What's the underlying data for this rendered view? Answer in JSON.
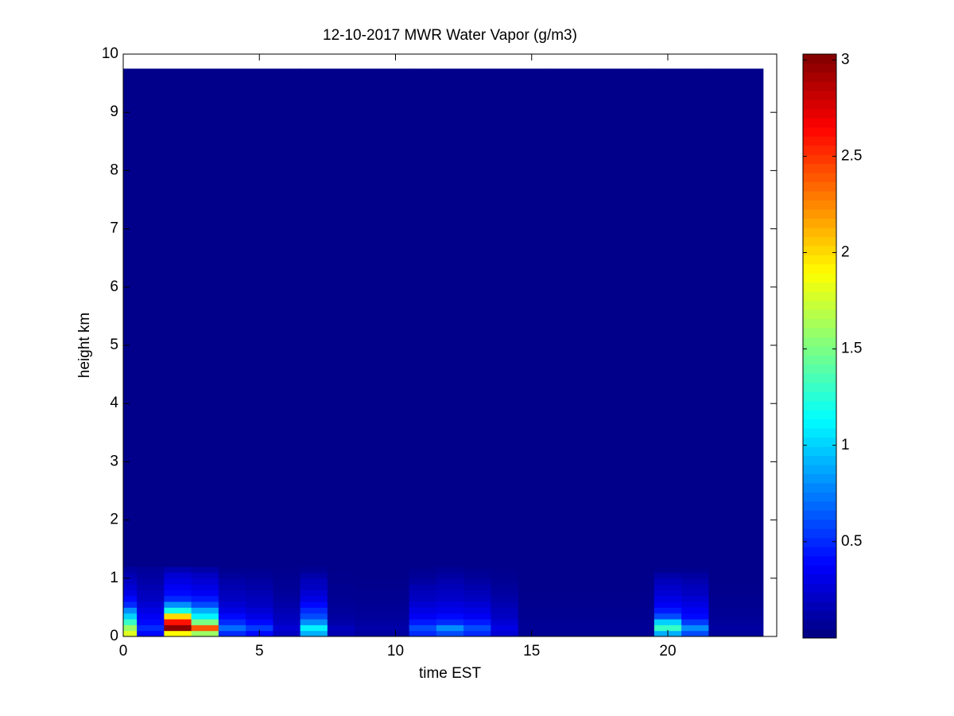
{
  "chart_data": {
    "type": "heatmap",
    "title": "12-10-2017 MWR Water Vapor (g/m3)",
    "x_label": "time EST",
    "y_label": "height km",
    "x_edges": [
      0,
      0.5,
      1.5,
      2.5,
      3.5,
      4.5,
      5.5,
      6.5,
      7.5,
      8.5,
      9.5,
      10.5,
      11.5,
      12.5,
      13.5,
      14.5,
      15.5,
      16.5,
      17.5,
      18.5,
      19.5,
      20.5,
      21.5,
      22.5,
      23.5
    ],
    "y_edges": [
      0,
      0.1,
      0.2,
      0.3,
      0.4,
      0.5,
      0.6,
      0.7,
      0.8,
      0.9,
      1.0,
      1.1,
      1.2,
      9.75
    ],
    "z": [
      [
        1.8,
        1.6,
        1.3,
        1.0,
        0.8,
        0.5,
        0.4,
        0.3,
        0.25,
        0.2,
        0.15,
        0.1,
        0.03
      ],
      [
        0.4,
        0.5,
        0.4,
        0.35,
        0.3,
        0.25,
        0.2,
        0.18,
        0.15,
        0.12,
        0.1,
        0.08,
        0.03
      ],
      [
        1.9,
        3.0,
        2.6,
        2.0,
        1.2,
        0.8,
        0.5,
        0.4,
        0.35,
        0.3,
        0.25,
        0.15,
        0.03
      ],
      [
        1.6,
        2.4,
        1.5,
        1.1,
        0.9,
        0.6,
        0.45,
        0.35,
        0.3,
        0.25,
        0.2,
        0.12,
        0.03
      ],
      [
        0.5,
        0.7,
        0.5,
        0.4,
        0.3,
        0.25,
        0.2,
        0.18,
        0.15,
        0.12,
        0.08,
        0.05,
        0.03
      ],
      [
        0.4,
        0.55,
        0.4,
        0.3,
        0.25,
        0.2,
        0.18,
        0.15,
        0.12,
        0.1,
        0.07,
        0.05,
        0.03
      ],
      [
        0.2,
        0.25,
        0.2,
        0.18,
        0.15,
        0.12,
        0.1,
        0.08,
        0.07,
        0.06,
        0.05,
        0.04,
        0.03
      ],
      [
        0.9,
        1.1,
        0.8,
        0.6,
        0.5,
        0.4,
        0.3,
        0.25,
        0.2,
        0.18,
        0.12,
        0.06,
        0.03
      ],
      [
        0.15,
        0.18,
        0.12,
        0.1,
        0.08,
        0.07,
        0.06,
        0.05,
        0.05,
        0.04,
        0.04,
        0.03,
        0.03
      ],
      [
        0.1,
        0.12,
        0.1,
        0.08,
        0.07,
        0.06,
        0.05,
        0.05,
        0.04,
        0.04,
        0.03,
        0.03,
        0.03
      ],
      [
        0.1,
        0.12,
        0.1,
        0.08,
        0.07,
        0.06,
        0.05,
        0.05,
        0.04,
        0.04,
        0.03,
        0.03,
        0.03
      ],
      [
        0.5,
        0.6,
        0.45,
        0.35,
        0.3,
        0.25,
        0.2,
        0.18,
        0.15,
        0.1,
        0.07,
        0.05,
        0.03
      ],
      [
        0.6,
        0.8,
        0.5,
        0.4,
        0.32,
        0.28,
        0.22,
        0.2,
        0.17,
        0.14,
        0.1,
        0.07,
        0.03
      ],
      [
        0.5,
        0.6,
        0.45,
        0.35,
        0.3,
        0.25,
        0.2,
        0.17,
        0.14,
        0.1,
        0.07,
        0.05,
        0.03
      ],
      [
        0.25,
        0.3,
        0.25,
        0.2,
        0.18,
        0.15,
        0.12,
        0.1,
        0.08,
        0.06,
        0.05,
        0.04,
        0.03
      ],
      [
        0.06,
        0.07,
        0.06,
        0.05,
        0.05,
        0.04,
        0.04,
        0.04,
        0.03,
        0.03,
        0.03,
        0.03,
        0.03
      ],
      [
        0.06,
        0.07,
        0.06,
        0.05,
        0.05,
        0.04,
        0.04,
        0.04,
        0.03,
        0.03,
        0.03,
        0.03,
        0.03
      ],
      [
        0.06,
        0.07,
        0.06,
        0.05,
        0.05,
        0.04,
        0.04,
        0.04,
        0.03,
        0.03,
        0.03,
        0.03,
        0.03
      ],
      [
        0.06,
        0.07,
        0.06,
        0.05,
        0.05,
        0.04,
        0.04,
        0.04,
        0.03,
        0.03,
        0.03,
        0.03,
        0.03
      ],
      [
        0.06,
        0.07,
        0.06,
        0.05,
        0.05,
        0.04,
        0.04,
        0.04,
        0.03,
        0.03,
        0.03,
        0.03,
        0.03
      ],
      [
        0.9,
        1.3,
        1.0,
        0.6,
        0.45,
        0.35,
        0.3,
        0.25,
        0.22,
        0.18,
        0.12,
        0.05,
        0.03
      ],
      [
        0.6,
        0.8,
        0.55,
        0.4,
        0.35,
        0.3,
        0.25,
        0.2,
        0.18,
        0.14,
        0.1,
        0.05,
        0.03
      ],
      [
        0.08,
        0.1,
        0.08,
        0.07,
        0.06,
        0.05,
        0.05,
        0.04,
        0.04,
        0.03,
        0.03,
        0.03,
        0.03
      ],
      [
        0.08,
        0.1,
        0.08,
        0.07,
        0.06,
        0.05,
        0.05,
        0.04,
        0.04,
        0.03,
        0.03,
        0.03,
        0.03
      ]
    ],
    "xlim": [
      0,
      24
    ],
    "xticks": [
      0,
      5,
      10,
      15,
      20
    ],
    "ylim": [
      0,
      10
    ],
    "yticks": [
      0,
      1,
      2,
      3,
      4,
      5,
      6,
      7,
      8,
      9,
      10
    ],
    "clim": [
      0,
      3.03
    ],
    "cticks": [
      0.5,
      1,
      1.5,
      2,
      2.5,
      3
    ],
    "colormap": "jet"
  }
}
